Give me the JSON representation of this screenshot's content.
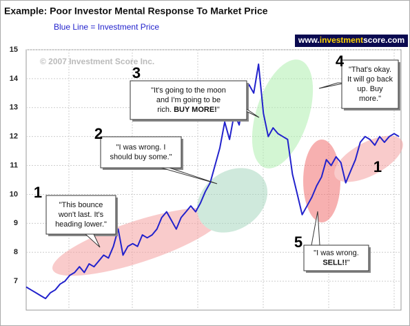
{
  "chart_data": {
    "type": "line",
    "title": "Example:  Poor Investor Mental Response To Market Price",
    "subtitle": "Blue Line = Investment Price",
    "logo": [
      "www.",
      "investment",
      "score.com"
    ],
    "copyright": "© 2007 Investment Score Inc.",
    "color": "#2222cc",
    "ylim": [
      6,
      15
    ],
    "yticks": [
      7,
      8,
      9,
      10,
      11,
      12,
      13,
      14,
      15
    ],
    "grid": true,
    "values": [
      6.8,
      6.7,
      6.6,
      6.5,
      6.4,
      6.6,
      6.7,
      6.9,
      7.0,
      7.2,
      7.3,
      7.5,
      7.3,
      7.6,
      7.5,
      7.7,
      7.9,
      7.8,
      8.2,
      8.8,
      7.9,
      8.2,
      8.3,
      8.2,
      8.6,
      8.5,
      8.6,
      8.8,
      9.2,
      9.4,
      9.1,
      8.8,
      9.2,
      9.4,
      9.6,
      9.4,
      9.7,
      10.1,
      10.4,
      11.0,
      11.6,
      12.5,
      11.9,
      12.8,
      12.4,
      13.4,
      13.8,
      13.5,
      14.5,
      12.8,
      12.0,
      12.3,
      12.1,
      12.0,
      11.9,
      10.7,
      10.0,
      9.3,
      9.6,
      9.9,
      10.3,
      10.6,
      11.2,
      11.0,
      11.3,
      11.1,
      10.4,
      10.8,
      11.2,
      11.8,
      12.0,
      11.9,
      11.7,
      12.0,
      11.8,
      12.0,
      12.1,
      12.0
    ],
    "annotations": [
      {
        "number": "1",
        "lines": [
          [
            "\"This bounce"
          ],
          [
            "won't last.  It's"
          ],
          [
            "heading lower.\""
          ]
        ]
      },
      {
        "number": "2",
        "lines": [
          [
            "\"I was wrong.  I"
          ],
          [
            "should buy some.\""
          ]
        ]
      },
      {
        "number": "3",
        "lines": [
          [
            "\"It's going to the moon"
          ],
          [
            "and I'm going to be"
          ],
          [
            "rich. ",
            {
              "bold": "BUY MORE!"
            },
            "\""
          ]
        ]
      },
      {
        "number": "4",
        "lines": [
          [
            "\"That's okay."
          ],
          [
            "It will go back"
          ],
          [
            "up.  Buy"
          ],
          [
            "more.\""
          ]
        ]
      },
      {
        "number": "5",
        "lines": [
          [
            "\"I was wrong."
          ],
          [
            {
              "bold": "SELL!!"
            },
            "\""
          ]
        ]
      },
      {
        "number": "1",
        "lines": []
      }
    ]
  }
}
